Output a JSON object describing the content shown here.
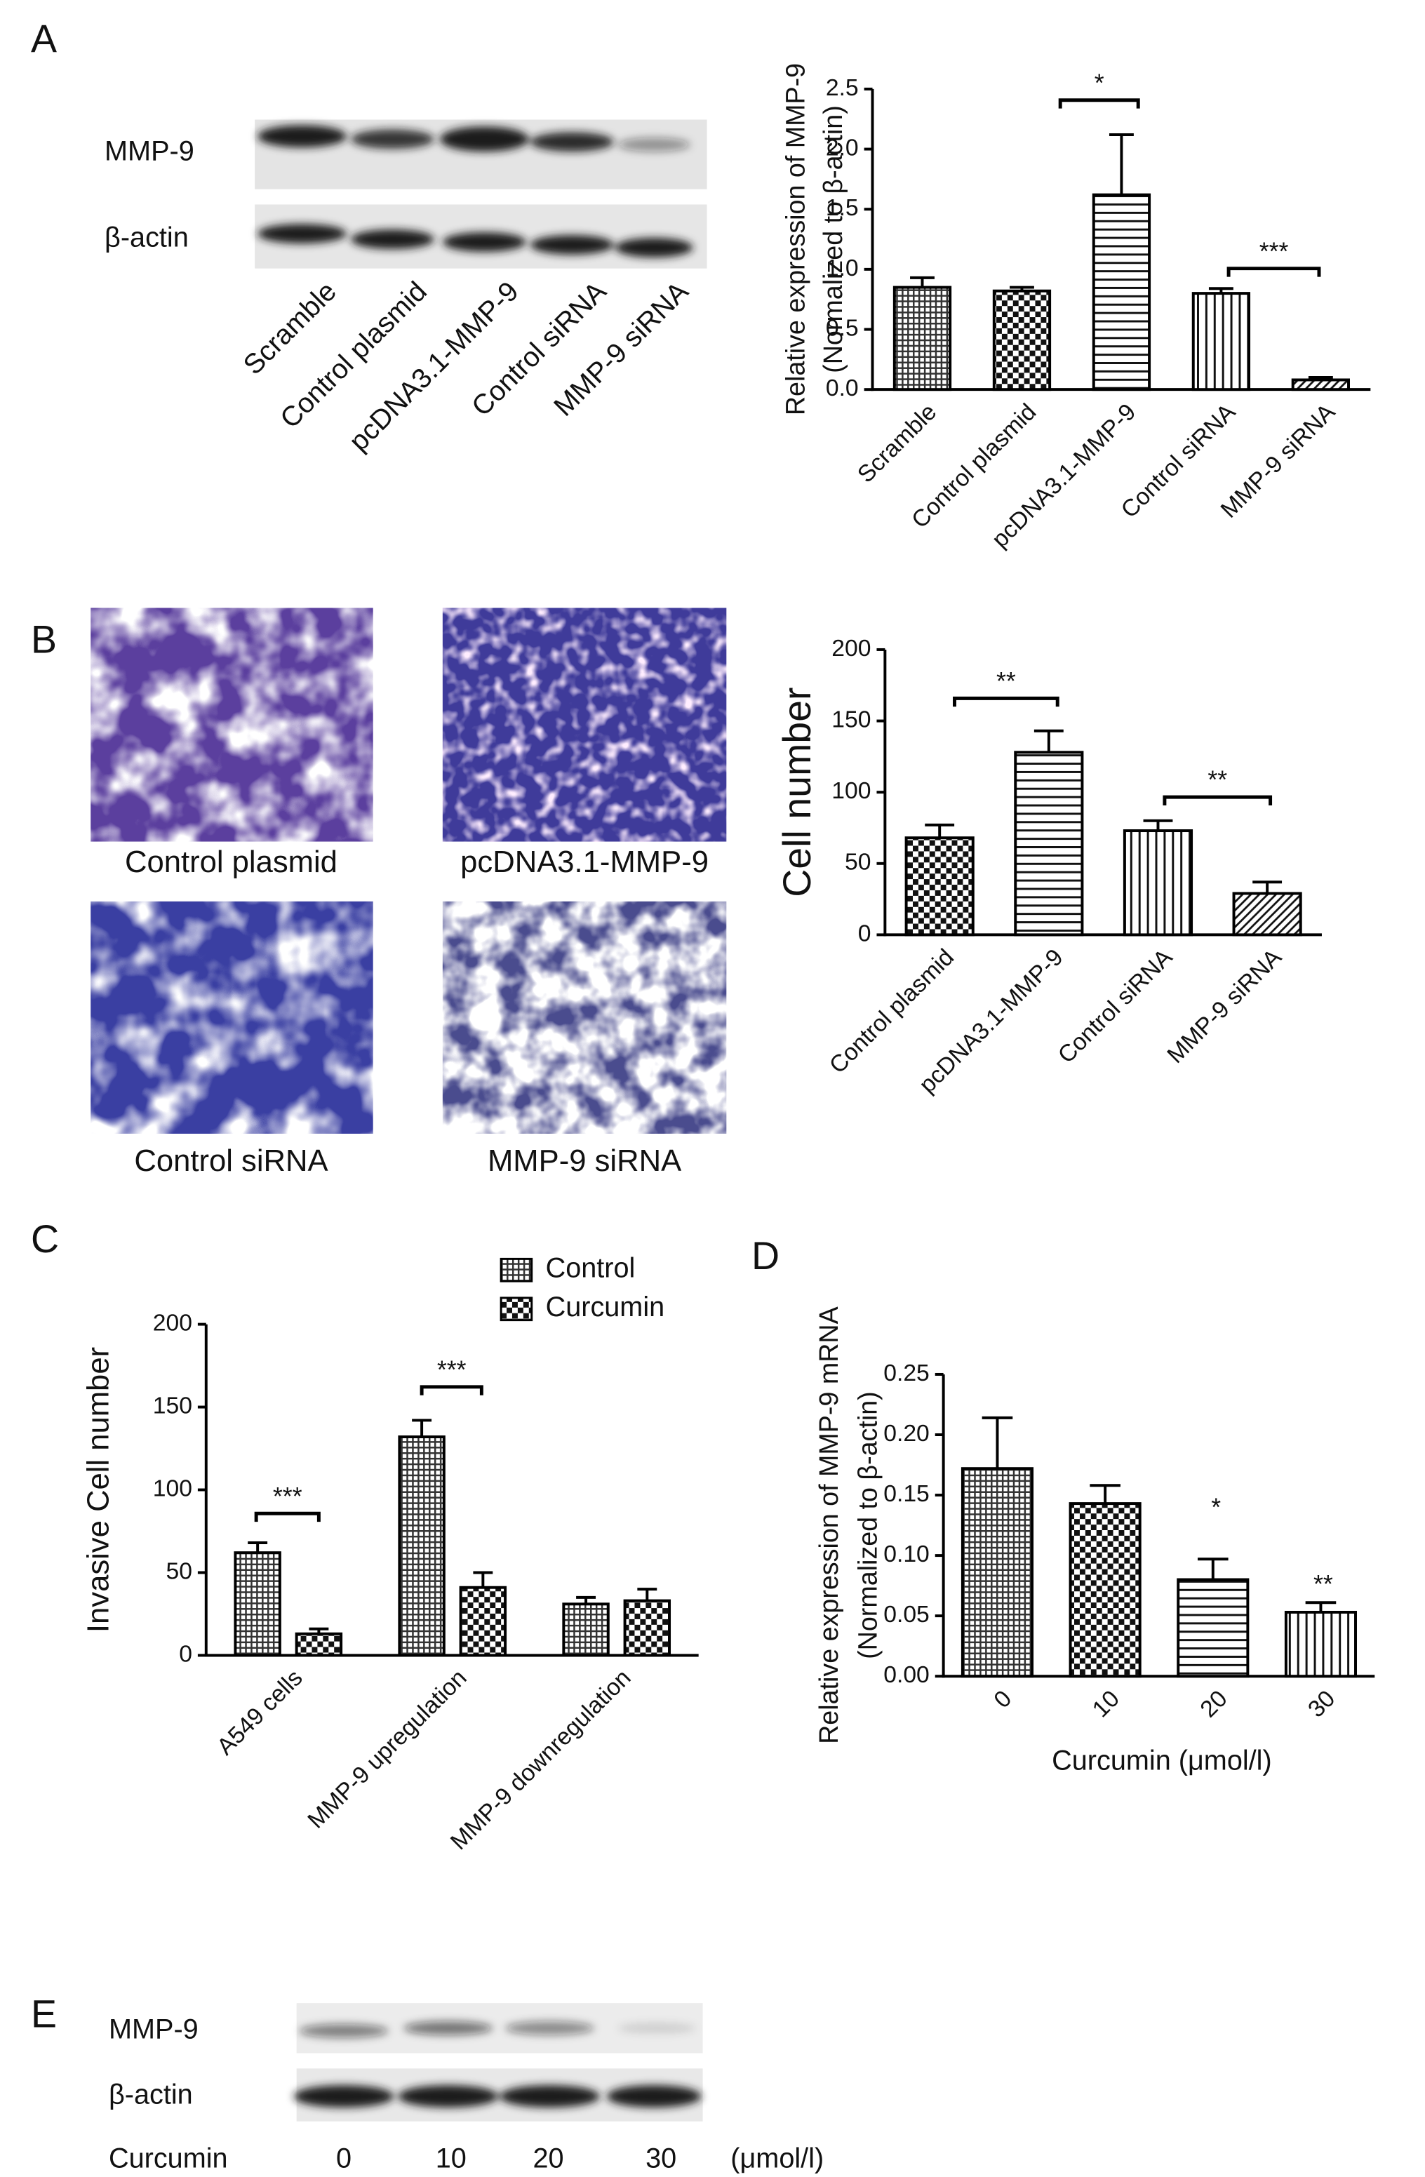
{
  "panel_labels": [
    "A",
    "B",
    "C",
    "D",
    "E"
  ],
  "blot_a": {
    "rows": [
      "MMP-9",
      "β-actin"
    ],
    "lanes": [
      "Scramble",
      "Control plasmid",
      "pcDNA3.1-MMP-9",
      "Control siRNA",
      "MMP-9 siRNA"
    ]
  },
  "micrographs": {
    "captions": [
      "Control plasmid",
      "pcDNA3.1-MMP-9",
      "Control siRNA",
      "MMP-9 siRNA"
    ]
  },
  "blot_e": {
    "rows": [
      "MMP-9",
      "β-actin"
    ],
    "treatment": "Curcumin",
    "doses": [
      "0",
      "10",
      "20",
      "30"
    ],
    "unit": "(μmol/l)"
  },
  "chart_data": [
    {
      "type": "bar",
      "y_label": [
        "Relative expression of MMP-9",
        "(Normalized to β-actin)"
      ],
      "categories": [
        "Scramble",
        "Control plasmid",
        "pcDNA3.1-MMP-9",
        "Control siRNA",
        "MMP-9 siRNA"
      ],
      "values": [
        0.85,
        0.82,
        1.62,
        0.8,
        0.08
      ],
      "errors": [
        0.08,
        0.03,
        0.5,
        0.04,
        0.02
      ],
      "patterns": [
        "crosshatch",
        "checker",
        "hlines",
        "vlines",
        "diag"
      ],
      "color": "#000000",
      "ylim": [
        0,
        2.5
      ],
      "yticks": [
        {
          "value": 0,
          "label": "0.0"
        },
        0.5,
        {
          "value": 1,
          "label": "1.0"
        },
        1.5,
        {
          "value": 2,
          "label": "2.0"
        },
        2.5
      ],
      "annotations": [
        "*",
        "***"
      ]
    },
    {
      "type": "bar",
      "y_label": [
        "Cell number"
      ],
      "categories": [
        "Control plasmid",
        "pcDNA3.1-MMP-9",
        "Control siRNA",
        "MMP-9 siRNA"
      ],
      "values": [
        68,
        128,
        73,
        29
      ],
      "errors": [
        9,
        15,
        7,
        8
      ],
      "patterns": [
        "checker",
        "hlines",
        "vlines",
        "diag"
      ],
      "color": "#000000",
      "ylim": [
        0,
        200
      ],
      "yticks": [
        0,
        50,
        100,
        150,
        200
      ],
      "annotations": [
        "**",
        "**"
      ]
    },
    {
      "type": "bar",
      "y_label": [
        "Invasive Cell number"
      ],
      "categories": [
        "A549 cells",
        "MMP-9  upregulation",
        "MMP-9 downregulation"
      ],
      "series": [
        {
          "name": "Control",
          "pattern": "crosshatch",
          "color": "#000000",
          "values": [
            62,
            132,
            31
          ],
          "errors": [
            6,
            10,
            4
          ]
        },
        {
          "name": "Curcumin",
          "pattern": "checker",
          "color": "#000000",
          "values": [
            13,
            41,
            33
          ],
          "errors": [
            3,
            9,
            7
          ]
        }
      ],
      "ylim": [
        0,
        200
      ],
      "yticks": [
        0,
        50,
        100,
        150,
        200
      ],
      "annotations": [
        "***",
        "***"
      ]
    },
    {
      "type": "bar",
      "y_label": [
        "Relative expression of MMP-9 mRNA",
        "(Normalized to β-actin)"
      ],
      "x_label": "Curcumin  (μmol/l)",
      "categories": [
        "0",
        "10",
        "20",
        "30"
      ],
      "values": [
        0.172,
        0.143,
        0.08,
        0.053
      ],
      "errors": [
        0.042,
        0.015,
        0.017,
        0.008
      ],
      "patterns": [
        "crosshatch",
        "checker",
        "hlines",
        "vlines"
      ],
      "color": "#000000",
      "ylim": [
        0,
        0.25
      ],
      "yticks": [
        {
          "value": 0,
          "label": "0.00"
        },
        {
          "value": 0.05,
          "label": "0.05"
        },
        {
          "value": 0.1,
          "label": "0.10"
        },
        {
          "value": 0.15,
          "label": "0.15"
        },
        {
          "value": 0.2,
          "label": "0.20"
        },
        {
          "value": 0.25,
          "label": "0.25"
        }
      ],
      "annotations": [
        "*",
        "**"
      ]
    }
  ]
}
